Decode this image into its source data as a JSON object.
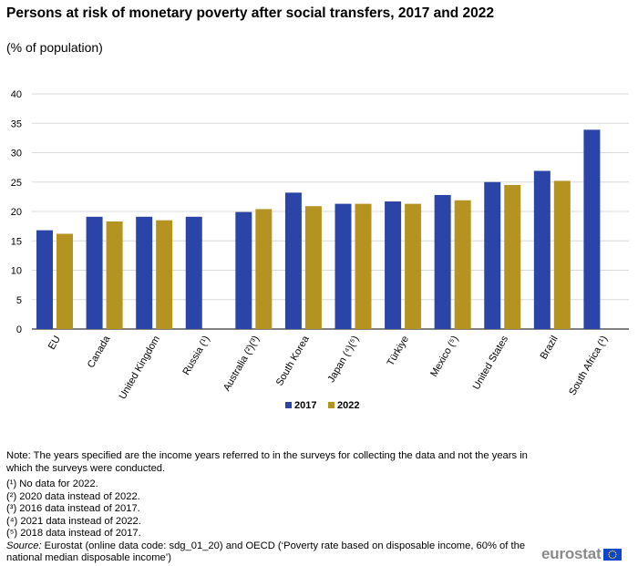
{
  "chart_data": {
    "type": "bar",
    "title": "Persons at risk of monetary poverty after social transfers, 2017 and 2022",
    "subtitle": "(% of population)",
    "categories": [
      "EU",
      "Canada",
      "United Kingdom",
      "Russia (¹)",
      "Australia (²)(³)",
      "South Korea",
      "Japan (⁴)(⁵)",
      "Türkiye",
      "Mexico (⁵)",
      "United States",
      "Brazil",
      "South Africa (¹)"
    ],
    "series": [
      {
        "name": "2017",
        "color": "#2a44a8",
        "values": [
          16.8,
          19.1,
          19.1,
          19.1,
          19.9,
          23.2,
          21.3,
          21.7,
          22.8,
          25.0,
          26.9,
          33.9
        ]
      },
      {
        "name": "2022",
        "color": "#b49320",
        "values": [
          16.2,
          18.3,
          18.5,
          null,
          20.4,
          20.9,
          21.3,
          21.3,
          21.9,
          24.5,
          25.2,
          null
        ]
      }
    ],
    "ylim": [
      0,
      40
    ],
    "yticks": [
      0,
      5,
      10,
      15,
      20,
      25,
      30,
      35,
      40
    ],
    "xlabel": "",
    "ylabel": "",
    "grid": true,
    "legend": "bottom-center"
  },
  "notes": {
    "main": "Note: The years specified are the income years referred to in the surveys for collecting the data and not the years in which the surveys  were conducted.",
    "footnotes": [
      "(¹) No data for 2022.",
      "(²) 2020 data instead of 2022.",
      "(³) 2016 data instead of 2017.",
      "(⁴) 2021 data instead of 2022.",
      "(⁵) 2018 data instead of 2017."
    ],
    "source_label": "Source:",
    "source_text": " Eurostat (online data code: sdg_01_20) and OECD (‘Poverty rate based on disposable income, 60% of the national median disposable income’)"
  },
  "logo": {
    "text": "eurostat"
  }
}
